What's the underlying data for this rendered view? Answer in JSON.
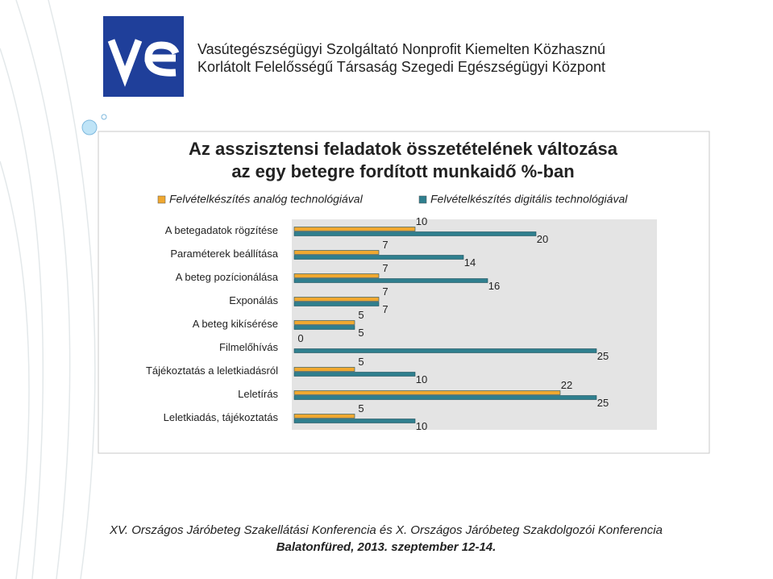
{
  "header": {
    "lines": [
      "Vasútegészségügyi Szolgáltató Nonprofit Kiemelten Közhasznú",
      "Korlátolt Felelősségű Társaság Szegedi Egészségügyi Központ"
    ]
  },
  "chart_data": {
    "type": "bar",
    "orientation": "horizontal",
    "title": [
      "Az asszisztensi feladatok összetételének változása",
      "az egy betegre fordított munkaidő %-ban"
    ],
    "categories": [
      "A betegadatok rögzítése",
      "Paraméterek beállítása",
      "A beteg pozícionálása",
      "Exponálás",
      "A beteg kikísérése",
      "Filmelőhívás",
      "Tájékoztatás a leletkiadásról",
      "Leletírás",
      "Leletkiadás, tájékoztatás"
    ],
    "series": [
      {
        "name": "Felvételkészítés analóg technológiával",
        "color": "#f0a830",
        "values": [
          10,
          7,
          7,
          7,
          5,
          0,
          5,
          22,
          5
        ]
      },
      {
        "name": "Felvételkészítés digitális technológiával",
        "color": "#2f7f8e",
        "values": [
          20,
          14,
          16,
          7,
          5,
          25,
          10,
          25,
          10
        ]
      }
    ],
    "xlim": [
      0,
      30
    ],
    "legend": "top"
  },
  "footer": {
    "lines": [
      "XV. Országos Járóbeteg Szakellátási Konferencia és X. Országos Járóbeteg Szakdolgozói Konferencia",
      "Balatonfüred, 2013. szeptember 12-14."
    ]
  }
}
